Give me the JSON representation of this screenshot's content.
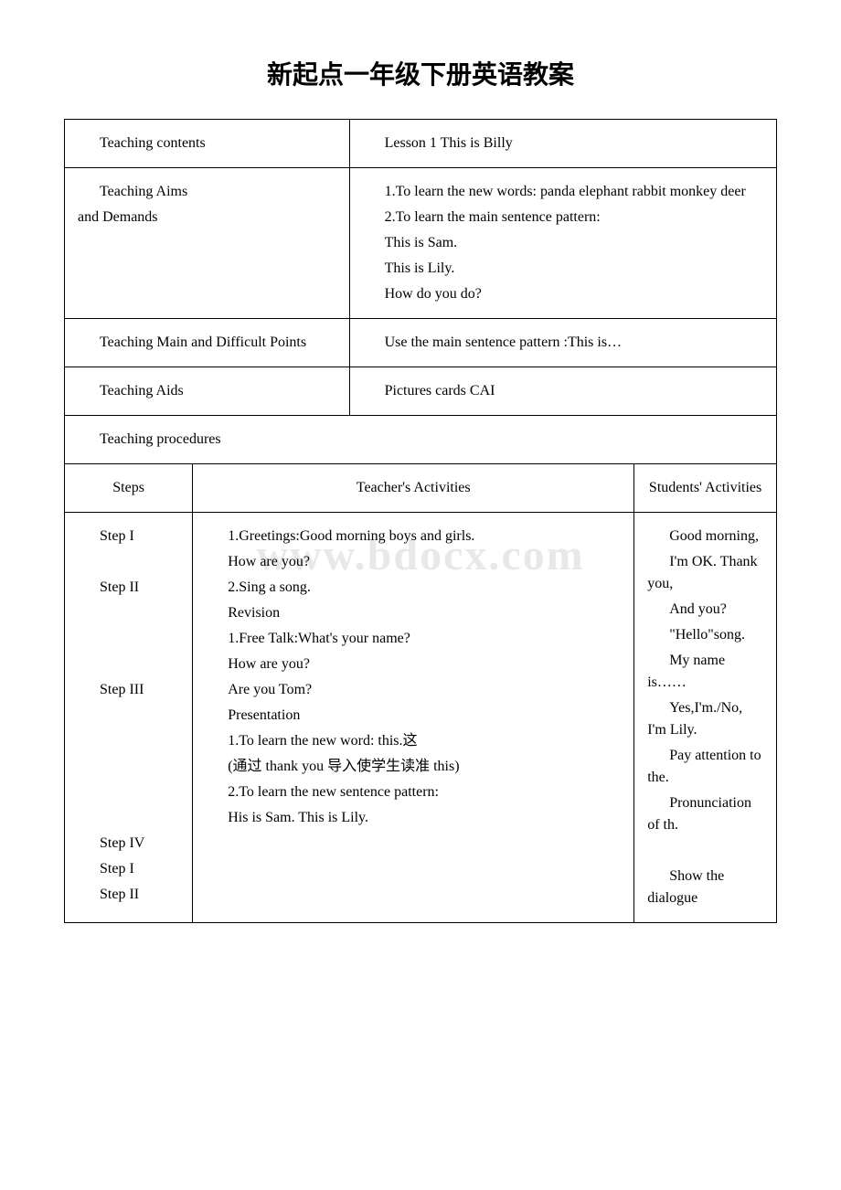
{
  "title": "新起点一年级下册英语教案",
  "rows": {
    "teaching_contents_label": "Teaching contents",
    "teaching_contents_value": "Lesson 1 This is Billy",
    "teaching_aims_label_1": "Teaching Aims",
    "teaching_aims_label_2": "and Demands",
    "teaching_aims_p1": "1.To learn the new words: panda elephant rabbit monkey deer",
    "teaching_aims_p2": "2.To learn the main sentence pattern:",
    "teaching_aims_p3": "This is Sam.",
    "teaching_aims_p4": "This is Lily.",
    "teaching_aims_p5": "How do you do?",
    "teaching_main_label": "Teaching Main and Difficult Points",
    "teaching_main_value": "Use the main sentence pattern :This is…",
    "teaching_aids_label": "Teaching Aids",
    "teaching_aids_value": "Pictures cards CAI",
    "teaching_procedures_label": "Teaching procedures",
    "steps_label": "Steps",
    "teacher_activities_label": "Teacher's Activities",
    "students_activities_label": "Students' Activities"
  },
  "steps": {
    "s1": "Step I",
    "s2": "Step II",
    "s3": "Step III",
    "s4": "Step IV",
    "s5": "Step I",
    "s6": "Step II"
  },
  "teacher": {
    "t1": "1.Greetings:Good morning boys and girls.",
    "t2": "How are you?",
    "t3": "2.Sing a song.",
    "t4": "Revision",
    "t5": "1.Free Talk:What's your name?",
    "t6": "How are you?",
    "t7": "Are you Tom?",
    "t8": "Presentation",
    "t9": "1.To learn the new word: this.这",
    "t10": "(通过 thank you 导入使学生读准 this)",
    "t11": "2.To learn the new sentence pattern:",
    "t12": "His is Sam. This is Lily."
  },
  "students": {
    "st1": "Good morning,",
    "st2": "I'm OK. Thank you,",
    "st3": "And you?",
    "st4": "\"Hello\"song.",
    "st5": "My name is……",
    "st6": "Yes,I'm./No, I'm Lily.",
    "st7": "Pay attention to the.",
    "st8": "Pronunciation of th.",
    "st9": "Show the dialogue"
  }
}
